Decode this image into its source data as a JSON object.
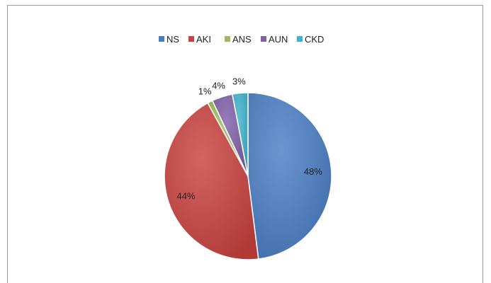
{
  "chart_data": {
    "type": "pie",
    "title": "",
    "categories": [
      "NS",
      "AKI",
      "ANS",
      "AUN",
      "CKD"
    ],
    "values": [
      48,
      44,
      1,
      4,
      3
    ],
    "labels": [
      "48%",
      "44%",
      "1%",
      "4%",
      "3%"
    ],
    "colors": [
      "#4a7ec4",
      "#c9423f",
      "#9bbb59",
      "#7f5fa8",
      "#3fb3cc"
    ],
    "legend_position": "top"
  }
}
